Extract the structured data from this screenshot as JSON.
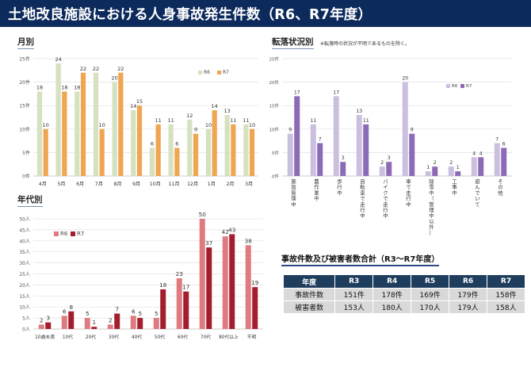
{
  "header": {
    "title": "土地改良施設における人身事故発生件数（R6、R7年度）"
  },
  "colors": {
    "header_bg": "#0d2a5c",
    "r6_month": "#d5e1bf",
    "r7_month": "#f0a550",
    "r6_type": "#cbbfe0",
    "r7_type": "#8c6bb6",
    "r6_age": "#de7a80",
    "r7_age": "#a31e2c",
    "table_header": "#1f3e5e",
    "table_cell": "#d9d9d9"
  },
  "sections": {
    "monthly": "月別",
    "type": "転落状況別",
    "type_note": "※転落時の状況が不明であるものを除く。",
    "age": "年代別",
    "summary": "事故件数及び被害者数合計（R3～R7年度）"
  },
  "chart_data": [
    {
      "type": "bar",
      "title": "月別",
      "categories": [
        "4月",
        "5月",
        "6月",
        "7月",
        "8月",
        "9月",
        "10月",
        "11月",
        "12月",
        "1月",
        "2月",
        "3月"
      ],
      "series": [
        {
          "name": "R6",
          "values": [
            18,
            24,
            18,
            22,
            20,
            14,
            6,
            11,
            12,
            10,
            13,
            11
          ]
        },
        {
          "name": "R7",
          "values": [
            10,
            18,
            22,
            10,
            22,
            15,
            11,
            6,
            9,
            14,
            11,
            10
          ]
        }
      ],
      "yticks": [
        "0件",
        "5件",
        "10件",
        "15件",
        "20件",
        "25件"
      ],
      "ylim": [
        0,
        25
      ],
      "legend": "top-right"
    },
    {
      "type": "bar",
      "title": "転落状況別",
      "categories": [
        "施設管理中",
        "農作業中",
        "歩行中",
        "自転車で走行中",
        "バイクで走行中",
        "車で走行中",
        "除雪中（管理中以外）",
        "工事中",
        "遊んでいて",
        "その他"
      ],
      "series": [
        {
          "name": "R6",
          "values": [
            9,
            11,
            17,
            13,
            2,
            20,
            1,
            2,
            4,
            7
          ]
        },
        {
          "name": "R7",
          "values": [
            17,
            7,
            3,
            11,
            3,
            9,
            2,
            1,
            4,
            6
          ]
        }
      ],
      "yticks": [
        "0件",
        "5件",
        "10件",
        "15件",
        "20件",
        "25件"
      ],
      "ylim": [
        0,
        25
      ],
      "legend": "top-right"
    },
    {
      "type": "bar",
      "title": "年代別",
      "categories": [
        "10歳未満",
        "10代",
        "20代",
        "30代",
        "40代",
        "50代",
        "60代",
        "70代",
        "80代以上",
        "不明"
      ],
      "series": [
        {
          "name": "R6",
          "values": [
            2,
            6,
            5,
            2,
            6,
            5,
            23,
            50,
            42,
            38
          ]
        },
        {
          "name": "R7",
          "values": [
            3,
            8,
            1,
            7,
            5,
            18,
            17,
            37,
            43,
            19
          ]
        }
      ],
      "yticks": [
        "0人",
        "5人",
        "10人",
        "15人",
        "20人",
        "25人",
        "30人",
        "35人",
        "40人",
        "45人",
        "50人"
      ],
      "ylim": [
        0,
        50
      ],
      "legend": "top-left"
    },
    {
      "type": "table",
      "title": "事故件数及び被害者数合計（R3～R7年度）",
      "columns": [
        "年度",
        "R3",
        "R4",
        "R5",
        "R6",
        "R7"
      ],
      "rows": [
        [
          "事故件数",
          "151件",
          "178件",
          "169件",
          "179件",
          "158件"
        ],
        [
          "被害者数",
          "153人",
          "180人",
          "170人",
          "179人",
          "158人"
        ]
      ]
    }
  ]
}
